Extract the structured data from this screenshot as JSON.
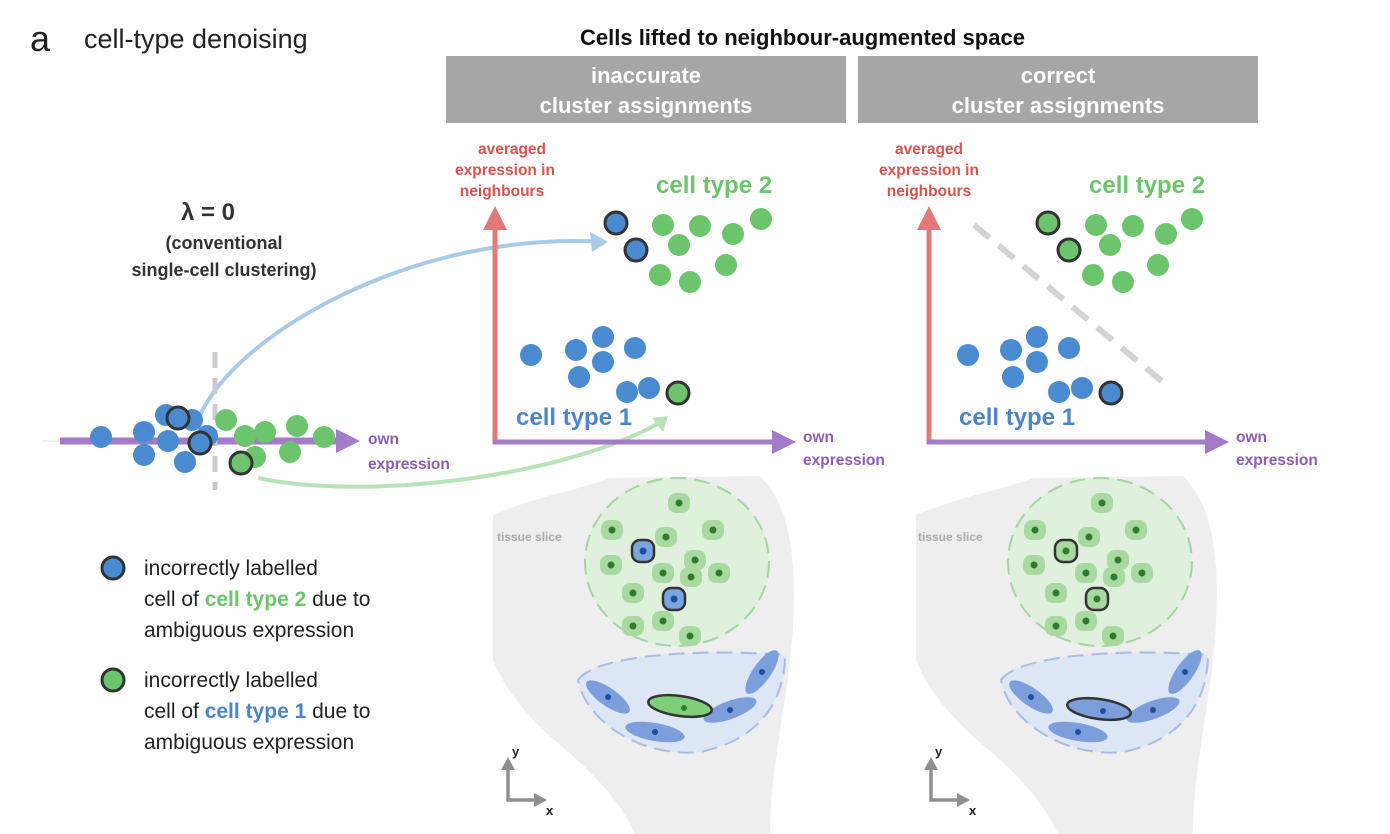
{
  "panel": {
    "letter": "a",
    "title": "cell-type denoising",
    "header": "Cells lifted to neighbour-augmented space"
  },
  "left": {
    "lambda_label": "λ = 0",
    "conventional_line1": "(conventional",
    "conventional_line2": "single-cell clustering)",
    "x_label_line1": "own",
    "x_label_line2": "expression"
  },
  "plots": [
    {
      "box_line1": "inaccurate",
      "box_line2": "cluster assignments",
      "y_label_line1": "averaged",
      "y_label_line2": "expression in",
      "y_label_line3": "neighbours",
      "x_label_line1": "own",
      "x_label_line2": "expression",
      "cluster_top_label": "cell type 2",
      "cluster_bottom_label": "cell type 1",
      "tissue_label": "tissue slice",
      "axis_y": "y",
      "axis_x": "x"
    },
    {
      "box_line1": "correct",
      "box_line2": "cluster assignments",
      "y_label_line1": "averaged",
      "y_label_line2": "expression in",
      "y_label_line3": "neighbours",
      "x_label_line1": "own",
      "x_label_line2": "expression",
      "cluster_top_label": "cell type 2",
      "cluster_bottom_label": "cell type 1",
      "tissue_label": "tissue slice",
      "axis_y": "y",
      "axis_x": "x"
    }
  ],
  "legend": [
    {
      "line1": "incorrectly labelled",
      "line2_prefix": "cell of ",
      "line2_highlight": "cell type 2",
      "line2_suffix": " due to",
      "line3": "ambiguous expression"
    },
    {
      "line1": "incorrectly labelled",
      "line2_prefix": "cell of ",
      "line2_highlight": "cell type 1",
      "line2_suffix": " due to",
      "line3": "ambiguous expression"
    }
  ],
  "colors": {
    "blue_cell": "#4a8ad0",
    "green_cell": "#6cc56d",
    "blue_text": "#4d86c8",
    "green_text": "#6cc56d",
    "y_axis": "#e07a78",
    "y_label": "#d9534f",
    "x_axis": "#a37bc7",
    "x_label": "#8e5db8",
    "header_box": "#a6a6a6",
    "divider": "#cccccc",
    "arrow_blue": "#aacbe8",
    "arrow_green": "#b8e2b8"
  }
}
